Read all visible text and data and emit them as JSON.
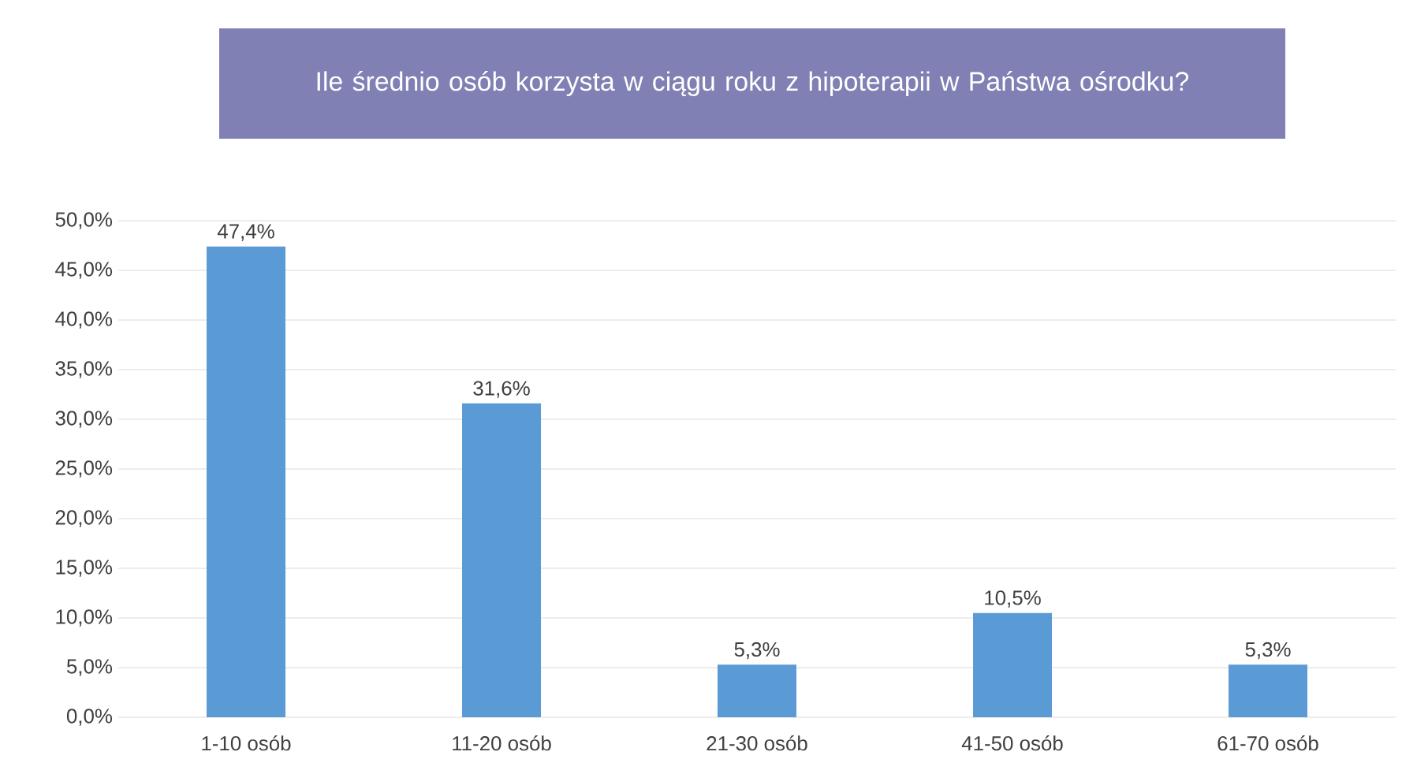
{
  "chart_data": {
    "type": "bar",
    "title": "Ile średnio osób korzysta w ciągu roku z hipoterapii w Państwa ośrodku?",
    "categories": [
      "1-10 osób",
      "11-20 osób",
      "21-30 osób",
      "41-50 osób",
      "61-70 osób"
    ],
    "values": [
      47.4,
      31.6,
      5.3,
      10.5,
      5.3
    ],
    "value_labels": [
      "47,4%",
      "31,6%",
      "5,3%",
      "10,5%",
      "5,3%"
    ],
    "color": "#5b9bd5",
    "ylim": [
      0,
      50
    ],
    "yticks": [
      {
        "value": 0,
        "label": "0,0%"
      },
      {
        "value": 5,
        "label": "5,0%"
      },
      {
        "value": 10,
        "label": "10,0%"
      },
      {
        "value": 15,
        "label": "15,0%"
      },
      {
        "value": 20,
        "label": "20,0%"
      },
      {
        "value": 25,
        "label": "25,0%"
      },
      {
        "value": 30,
        "label": "30,0%"
      },
      {
        "value": 35,
        "label": "35,0%"
      },
      {
        "value": 40,
        "label": "40,0%"
      },
      {
        "value": 45,
        "label": "45,0%"
      },
      {
        "value": 50,
        "label": "50,0%"
      }
    ],
    "grid": "y"
  }
}
